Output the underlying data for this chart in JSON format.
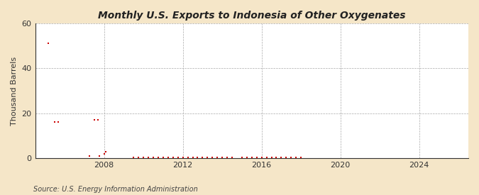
{
  "title": "Monthly U.S. Exports to Indonesia of Other Oxygenates",
  "ylabel": "Thousand Barrels",
  "source": "Source: U.S. Energy Information Administration",
  "background_color": "#f5e6c8",
  "plot_background_color": "#ffffff",
  "marker_color": "#cc0000",
  "marker_size": 4,
  "ylim": [
    0,
    60
  ],
  "yticks": [
    0,
    20,
    40,
    60
  ],
  "xlim_start": 2004.5,
  "xlim_end": 2026.5,
  "xticks": [
    2008,
    2012,
    2016,
    2020,
    2024
  ],
  "data": [
    [
      2005.17,
      51
    ],
    [
      2005.5,
      16
    ],
    [
      2005.67,
      16
    ],
    [
      2007.25,
      1
    ],
    [
      2007.5,
      17
    ],
    [
      2007.67,
      17
    ],
    [
      2007.75,
      1
    ],
    [
      2008.0,
      2
    ],
    [
      2008.08,
      3
    ],
    [
      2009.5,
      0.5
    ],
    [
      2009.75,
      0.5
    ],
    [
      2010.0,
      0.5
    ],
    [
      2010.25,
      0.5
    ],
    [
      2010.5,
      0.5
    ],
    [
      2010.75,
      0.5
    ],
    [
      2011.0,
      0.5
    ],
    [
      2011.25,
      0.5
    ],
    [
      2011.5,
      0.5
    ],
    [
      2011.75,
      0.5
    ],
    [
      2012.0,
      0.5
    ],
    [
      2012.25,
      0.5
    ],
    [
      2012.5,
      0.5
    ],
    [
      2012.75,
      0.5
    ],
    [
      2013.0,
      0.5
    ],
    [
      2013.25,
      0.5
    ],
    [
      2013.5,
      0.5
    ],
    [
      2013.75,
      0.5
    ],
    [
      2014.0,
      0.5
    ],
    [
      2014.25,
      0.5
    ],
    [
      2014.5,
      0.5
    ],
    [
      2015.0,
      0.5
    ],
    [
      2015.25,
      0.5
    ],
    [
      2015.5,
      0.5
    ],
    [
      2015.75,
      0.5
    ],
    [
      2016.0,
      0.5
    ],
    [
      2016.25,
      0.5
    ],
    [
      2016.5,
      0.5
    ],
    [
      2016.75,
      0.5
    ],
    [
      2017.0,
      0.5
    ],
    [
      2017.25,
      0.5
    ],
    [
      2017.5,
      0.5
    ],
    [
      2017.75,
      0.5
    ],
    [
      2018.0,
      0.5
    ]
  ]
}
